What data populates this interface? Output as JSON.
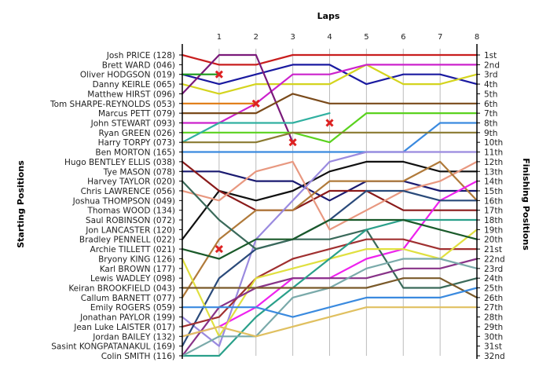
{
  "chart_data": {
    "type": "line",
    "title": "",
    "top_axis_label": "Laps",
    "left_axis_label": "Starting Positions",
    "right_axis_label": "Finishing Positions",
    "x": [
      0,
      1,
      2,
      3,
      4,
      5,
      6,
      7,
      8
    ],
    "x_tick_labels": [
      "1",
      "2",
      "3",
      "4",
      "5",
      "6",
      "7",
      "8"
    ],
    "y_range": [
      1,
      32
    ],
    "y_reversed": true,
    "grid": true,
    "starting_labels": [
      "Josh PRICE (128)",
      "Brett WARD (046)",
      "Oliver HODGSON (019)",
      "Danny KEIRLE (065)",
      "Matthew HIRST (096)",
      "Tom SHARPE-REYNOLDS (053)",
      "Marcus PETT (079)",
      "John STEWART (093)",
      "Ryan GREEN (026)",
      "Harry TORPY (073)",
      "Ben MORTON (165)",
      "Hugo BENTLEY ELLIS (038)",
      "Tye MASON (078)",
      "Harvey TAYLOR (020)",
      "Chris LAWRENCE (056)",
      "Joshua THOMPSON (049)",
      "Thomas WOOD (134)",
      "Saul ROBINSON (072)",
      "Jon LANCASTER (120)",
      "Bradley PENNELL (022)",
      "Archie TILLETT (021)",
      "Bryony KING (126)",
      "Karl BROWN (177)",
      "Lewis WADLEY (098)",
      "Keiran BROOKFIELD (043)",
      "Callum BARNETT (077)",
      "Emily ROGERS (059)",
      "Jonathan PAYLOR (199)",
      "Jean Luke LAISTER (017)",
      "Jordan BAILEY (132)",
      "Sasint KONGPATANAKUL (169)",
      "Colin SMITH (116)"
    ],
    "finishing_labels": [
      "1st",
      "2nd",
      "3rd",
      "4th",
      "5th",
      "6th",
      "7th",
      "8th",
      "9th",
      "10th",
      "11th",
      "12th",
      "13th",
      "14th",
      "15th",
      "16th",
      "17th",
      "18th",
      "19th",
      "20th",
      "21st",
      "22nd",
      "23rd",
      "24th",
      "25th",
      "26th",
      "27th",
      "28th",
      "29th",
      "30th",
      "31st",
      "32nd"
    ],
    "series": [
      {
        "color": "#c81e1e",
        "values": [
          1,
          2,
          2,
          1,
          1,
          1,
          1,
          1,
          1
        ]
      },
      {
        "color": "#1a1aa0",
        "values": [
          3,
          4,
          3,
          2,
          2,
          4,
          3,
          3,
          4
        ]
      },
      {
        "color": "#d4d41e",
        "values": [
          4,
          5,
          4,
          4,
          4,
          2,
          4,
          4,
          3
        ]
      },
      {
        "color": "#cc22cc",
        "values": [
          8,
          8,
          6,
          3,
          3,
          2,
          2,
          2,
          2
        ]
      },
      {
        "color": "#7a1a7a",
        "values": [
          5,
          1,
          1,
          10,
          null,
          null,
          null,
          null,
          null
        ]
      },
      {
        "color": "#1a9a1a",
        "values": [
          3,
          3,
          null,
          null,
          null,
          null,
          null,
          null,
          null
        ]
      },
      {
        "color": "#e07a10",
        "values": [
          6,
          6,
          6,
          null,
          null,
          null,
          null,
          null,
          null
        ]
      },
      {
        "color": "#7a4a1a",
        "values": [
          7,
          7,
          7,
          5,
          6,
          6,
          6,
          6,
          6
        ]
      },
      {
        "color": "#3a8adf",
        "values": [
          11,
          11,
          11,
          11,
          11,
          11,
          11,
          8,
          8
        ]
      },
      {
        "color": "#5ad21e",
        "values": [
          9,
          9,
          9,
          9,
          10,
          7,
          7,
          7,
          7
        ]
      },
      {
        "color": "#30b0a0",
        "values": [
          10,
          8,
          8,
          8,
          7,
          null,
          null,
          null,
          null
        ]
      },
      {
        "color": "#8a7a30",
        "values": [
          10,
          10,
          10,
          9,
          9,
          9,
          9,
          9,
          9
        ]
      },
      {
        "color": "#101010",
        "values": [
          20,
          15,
          16,
          15,
          13,
          12,
          12,
          13,
          13
        ]
      },
      {
        "color": "#1a1a70",
        "values": [
          13,
          13,
          14,
          14,
          16,
          14,
          14,
          15,
          15
        ]
      },
      {
        "color": "#8a1a1a",
        "values": [
          12,
          15,
          17,
          17,
          15,
          15,
          17,
          17,
          17
        ]
      },
      {
        "color": "#e89880",
        "values": [
          15,
          16,
          13,
          12,
          19,
          17,
          15,
          14,
          12
        ]
      },
      {
        "color": "#b07a3a",
        "values": [
          26,
          20,
          17,
          17,
          14,
          14,
          14,
          12,
          16
        ]
      },
      {
        "color": "#9a8adf",
        "values": [
          28,
          31,
          20,
          16,
          12,
          11,
          11,
          11,
          11
        ]
      },
      {
        "color": "#ee22ee",
        "values": [
          30,
          29,
          27,
          24,
          24,
          22,
          21,
          16,
          14
        ]
      },
      {
        "color": "#2a4a7a",
        "values": [
          31,
          24,
          21,
          20,
          18,
          15,
          15,
          16,
          16
        ]
      },
      {
        "color": "#3a6a5a",
        "values": [
          14,
          18,
          21,
          20,
          20,
          19,
          25,
          25,
          24
        ]
      },
      {
        "color": "#a03030",
        "values": [
          29,
          28,
          24,
          22,
          21,
          20,
          20,
          21,
          21
        ]
      },
      {
        "color": "#e0e040",
        "values": [
          22,
          30,
          24,
          23,
          22,
          21,
          21,
          22,
          19
        ]
      },
      {
        "color": "#883388",
        "values": [
          32,
          27,
          25,
          24,
          24,
          24,
          23,
          23,
          22
        ]
      },
      {
        "color": "#2aa08a",
        "values": [
          32,
          32,
          28,
          25,
          22,
          19,
          18,
          18,
          18
        ]
      },
      {
        "color": "#7aaaaa",
        "values": [
          32,
          30,
          30,
          26,
          25,
          23,
          22,
          22,
          23
        ]
      },
      {
        "color": "#7a5a2a",
        "values": [
          25,
          25,
          25,
          25,
          25,
          25,
          24,
          24,
          26
        ]
      },
      {
        "color": "#3a8adf",
        "values": [
          27,
          27,
          27,
          28,
          27,
          26,
          26,
          26,
          25
        ]
      },
      {
        "color": "#e0c060",
        "values": [
          30,
          29,
          30,
          29,
          28,
          27,
          27,
          27,
          27
        ]
      },
      {
        "color": "#1a5a2a",
        "values": [
          21,
          22,
          20,
          20,
          18,
          18,
          18,
          19,
          20
        ]
      }
    ],
    "retirements": [
      {
        "x": 1,
        "y": 3,
        "color": "#dd2222"
      },
      {
        "x": 2,
        "y": 6,
        "color": "#dd2222"
      },
      {
        "x": 3,
        "y": 10,
        "color": "#dd2222"
      },
      {
        "x": 4,
        "y": 8,
        "color": "#dd2222"
      },
      {
        "x": 1,
        "y": 21,
        "color": "#dd2222"
      }
    ],
    "grid_color": "#bbbbbb",
    "frame_color": "#000000"
  }
}
